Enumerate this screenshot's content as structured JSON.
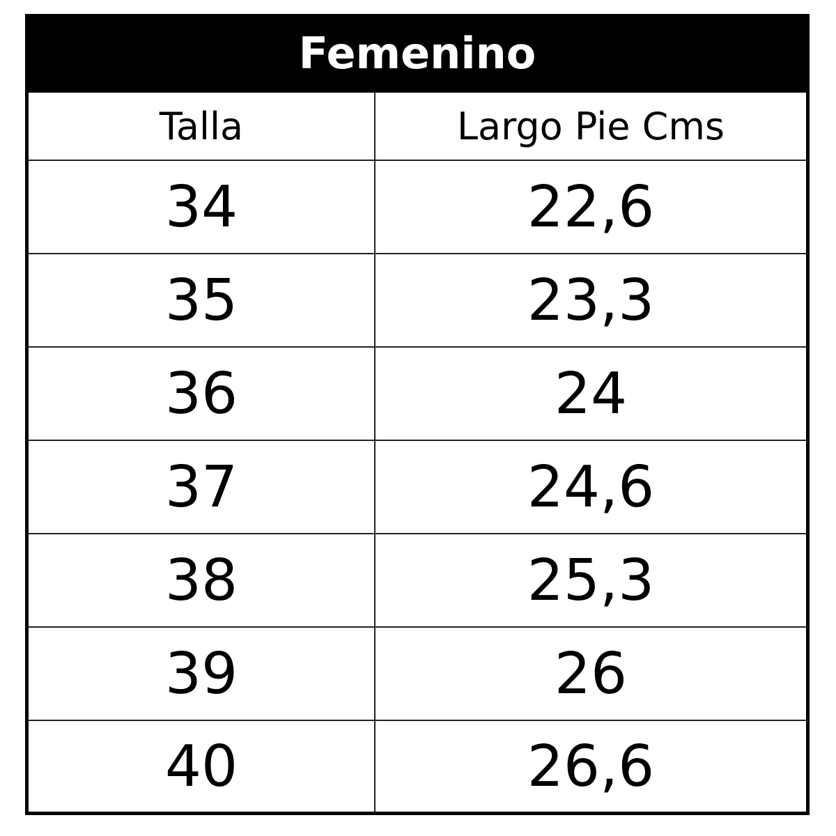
{
  "table": {
    "title": "Femenino",
    "headers": [
      "Talla",
      "Largo Pie Cms"
    ],
    "rows": [
      [
        "34",
        "22,6"
      ],
      [
        "35",
        "23,3"
      ],
      [
        "36",
        "24"
      ],
      [
        "37",
        "24,6"
      ],
      [
        "38",
        "25,3"
      ],
      [
        "39",
        "26"
      ],
      [
        "40",
        "26,6"
      ]
    ]
  }
}
